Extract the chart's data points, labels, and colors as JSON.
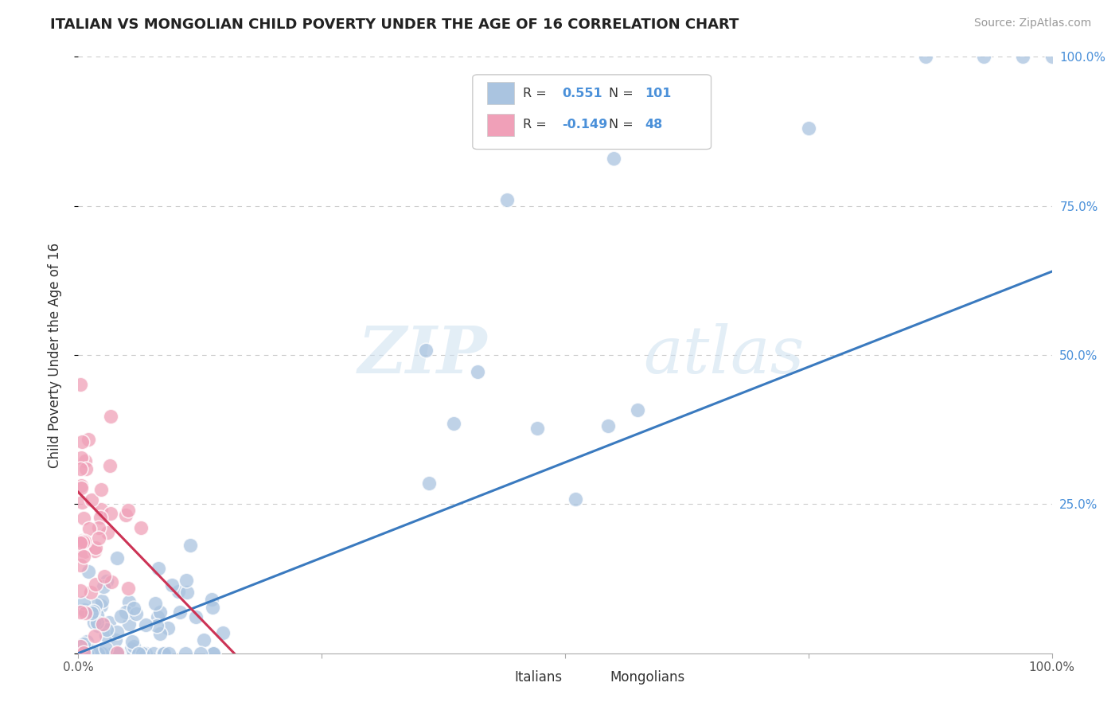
{
  "title": "ITALIAN VS MONGOLIAN CHILD POVERTY UNDER THE AGE OF 16 CORRELATION CHART",
  "source": "Source: ZipAtlas.com",
  "ylabel": "Child Poverty Under the Age of 16",
  "xlim": [
    0,
    1.0
  ],
  "ylim": [
    0,
    1.0
  ],
  "italian_R": 0.551,
  "italian_N": 101,
  "mongolian_R": -0.149,
  "mongolian_N": 48,
  "italian_color": "#aac4e0",
  "mongolian_color": "#f0a0b8",
  "italian_line_color": "#3a7abf",
  "mongolian_line_color": "#cc3355",
  "watermark_zip": "ZIP",
  "watermark_atlas": "atlas",
  "background_color": "#ffffff",
  "grid_color": "#cccccc",
  "title_color": "#222222",
  "axis_color": "#aaaaaa",
  "right_tick_color": "#4a90d9",
  "legend_border_color": "#cccccc"
}
